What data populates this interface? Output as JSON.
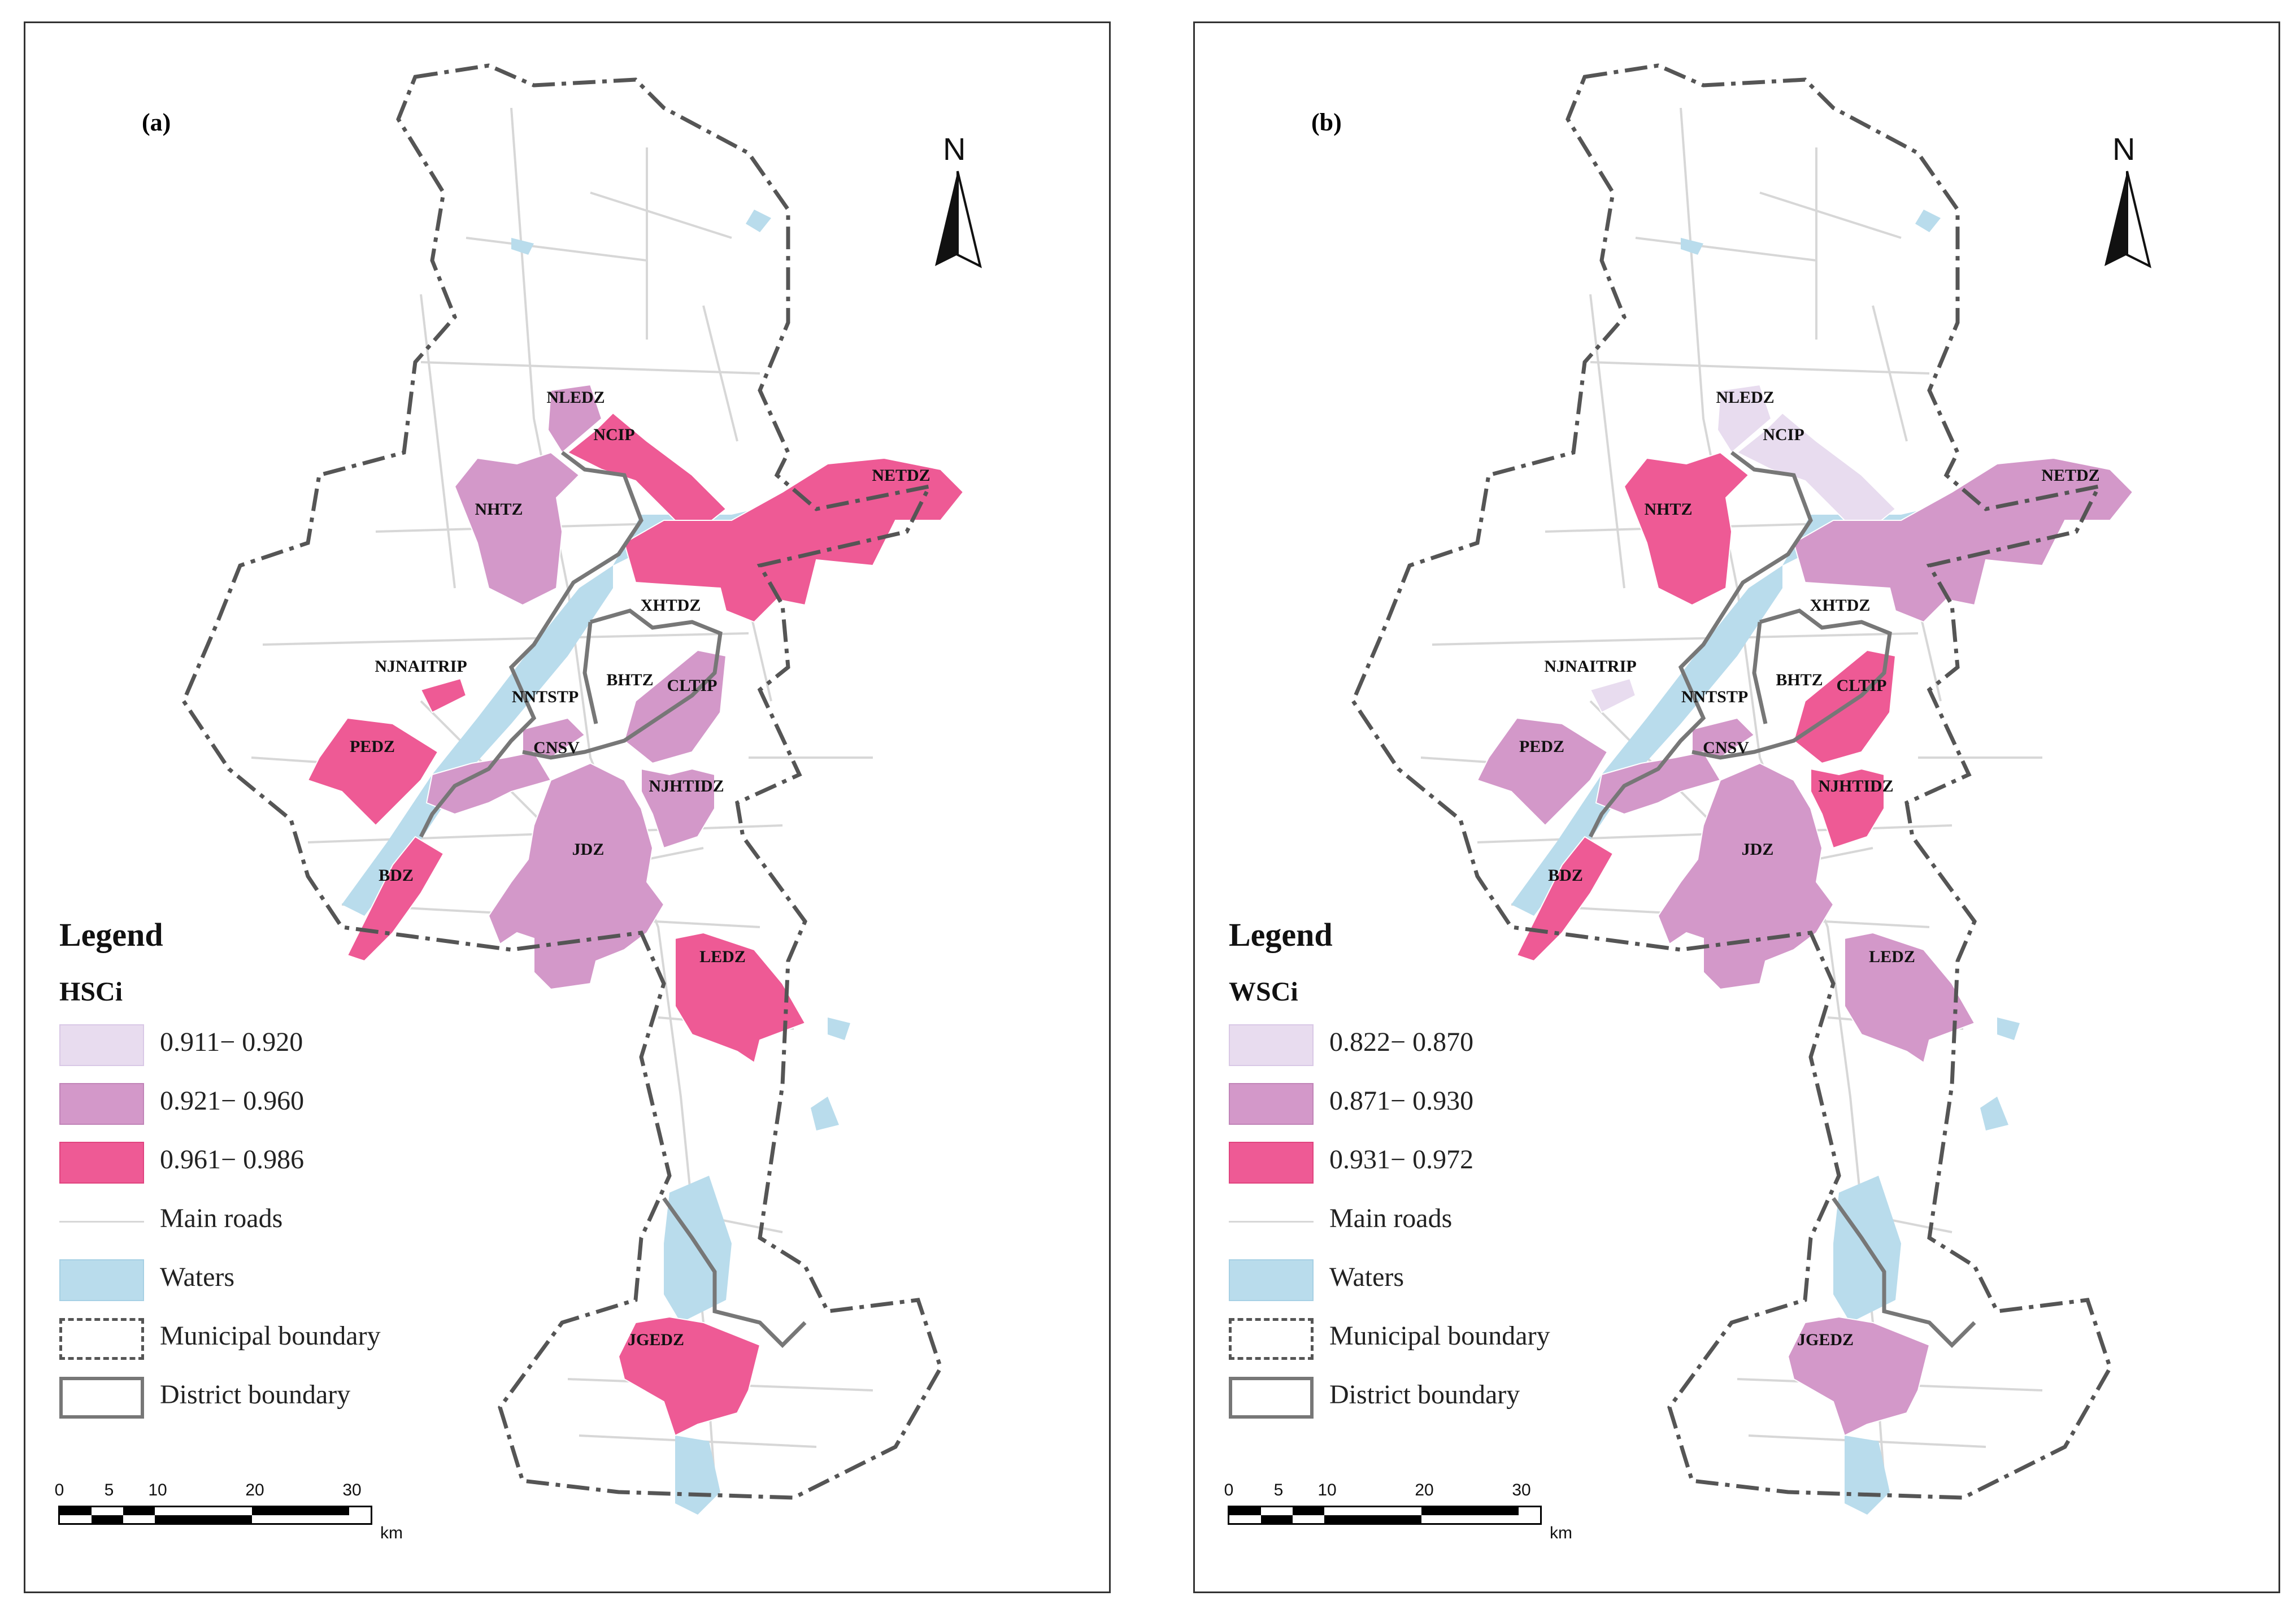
{
  "colors": {
    "class1": "#e8dcef",
    "class2": "#d398c9",
    "class3": "#ee5a95",
    "water": "#b9dcec",
    "road": "#d7d7d7",
    "municipal_boundary": "#555555",
    "district_boundary": "#777777"
  },
  "north_arrow": {
    "letter": "N",
    "icon": "north-arrow-icon"
  },
  "scale": {
    "ticks": [
      "0",
      "5",
      "10",
      "20",
      "30"
    ],
    "unit": "km"
  },
  "zone_names": {
    "nledz": "NLEDZ",
    "ncip": "NCIP",
    "netdz": "NETDZ",
    "nhtz": "NHTZ",
    "xhtdz": "XHTDZ",
    "njnaitrip": "NJNAITRIP",
    "bhtz": "BHTZ",
    "nntstp": "NNTSTP",
    "cltip": "CLTIP",
    "pedz": "PEDZ",
    "cnsv": "CNSV",
    "njhtidz": "NJHTIDZ",
    "jdz": "JDZ",
    "bdz": "BDZ",
    "ledz": "LEDZ",
    "jgedz": "JGEDZ"
  },
  "panels": [
    {
      "label": "(a)",
      "legend": {
        "title": "Legend",
        "field": "HSCi",
        "classes": [
          "0.911− 0.920",
          "0.921− 0.960",
          "0.961− 0.986"
        ],
        "main_roads": "Main roads",
        "waters": "Waters",
        "municipal_boundary": "Municipal boundary",
        "district_boundary": "District boundary"
      },
      "zone_class": {
        "nledz": 2,
        "ncip": 3,
        "netdz": 3,
        "nhtz": 2,
        "xhtdz": 0,
        "njnaitrip": 3,
        "bhtz": 0,
        "nntstp": 2,
        "cltip": 2,
        "pedz": 3,
        "cnsv": 2,
        "njhtidz": 2,
        "jdz": 2,
        "bdz": 3,
        "ledz": 3,
        "jgedz": 3
      }
    },
    {
      "label": "(b)",
      "legend": {
        "title": "Legend",
        "field": "WSCi",
        "classes": [
          "0.822− 0.870",
          "0.871− 0.930",
          "0.931− 0.972"
        ],
        "main_roads": "Main roads",
        "waters": "Waters",
        "municipal_boundary": "Municipal boundary",
        "district_boundary": "District boundary"
      },
      "zone_class": {
        "nledz": 1,
        "ncip": 1,
        "netdz": 2,
        "nhtz": 3,
        "xhtdz": 0,
        "njnaitrip": 1,
        "bhtz": 0,
        "nntstp": 2,
        "cltip": 3,
        "pedz": 2,
        "cnsv": 2,
        "njhtidz": 3,
        "jdz": 2,
        "bdz": 3,
        "ledz": 2,
        "jgedz": 2
      }
    }
  ]
}
